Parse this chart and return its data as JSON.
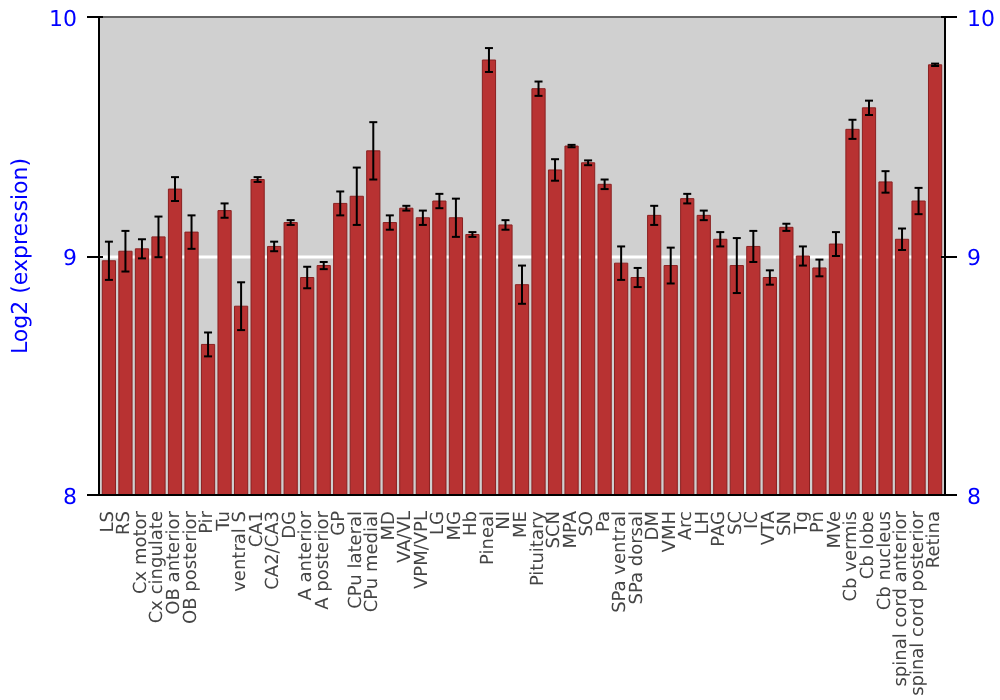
{
  "chart_data": {
    "type": "bar",
    "ylabel": "Log2 (expression)",
    "categories": [
      "LS",
      "RS",
      "Cx motor",
      "Cx cingulate",
      "OB anterior",
      "OB posterior",
      "Pir",
      "Tu",
      "ventral S",
      "CA1",
      "CA2/CA3",
      "DG",
      "A anterior",
      "A posterior",
      "GP",
      "CPu lateral",
      "CPu medial",
      "MD",
      "VA/VL",
      "VPM/VPL",
      "LG",
      "MG",
      "Hb",
      "Pineal",
      "NI",
      "ME",
      "Pituitary",
      "SCN",
      "MPA",
      "SO",
      "Pa",
      "SPa ventral",
      "SPa dorsal",
      "DM",
      "VMH",
      "Arc",
      "LH",
      "PAG",
      "SC",
      "IC",
      "VTA",
      "SN",
      "Tg",
      "Pn",
      "MVe",
      "Cb vermis",
      "Cb lobe",
      "Cb nucleus",
      "spinal cord anterior",
      "spinal cord posterior",
      "Retina"
    ],
    "values": [
      8.98,
      9.02,
      9.03,
      9.08,
      9.28,
      9.1,
      8.63,
      9.19,
      8.79,
      9.32,
      9.04,
      9.14,
      8.91,
      8.96,
      9.22,
      9.25,
      9.44,
      9.14,
      9.2,
      9.16,
      9.23,
      9.16,
      9.09,
      9.82,
      9.13,
      8.88,
      9.7,
      9.36,
      9.46,
      9.39,
      9.3,
      8.97,
      8.91,
      9.17,
      8.96,
      9.24,
      9.17,
      9.07,
      8.96,
      9.04,
      8.91,
      9.12,
      9.0,
      8.95,
      9.05,
      9.53,
      9.62,
      9.31,
      9.07,
      9.23,
      9.8
    ],
    "errors": [
      0.08,
      0.085,
      0.04,
      0.085,
      0.05,
      0.07,
      0.05,
      0.03,
      0.1,
      0.01,
      0.02,
      0.01,
      0.045,
      0.015,
      0.05,
      0.12,
      0.12,
      0.03,
      0.01,
      0.03,
      0.03,
      0.08,
      0.01,
      0.05,
      0.02,
      0.08,
      0.03,
      0.045,
      0.005,
      0.01,
      0.02,
      0.07,
      0.04,
      0.04,
      0.075,
      0.02,
      0.02,
      0.03,
      0.115,
      0.065,
      0.03,
      0.015,
      0.04,
      0.035,
      0.05,
      0.04,
      0.03,
      0.045,
      0.045,
      0.055,
      0.005
    ],
    "color": "#b83232",
    "ylim": [
      8,
      10
    ],
    "yticks": [
      8,
      9,
      10
    ],
    "y2lim": [
      8,
      10
    ],
    "y2ticks": [
      8,
      9,
      10
    ],
    "grid": "y"
  }
}
